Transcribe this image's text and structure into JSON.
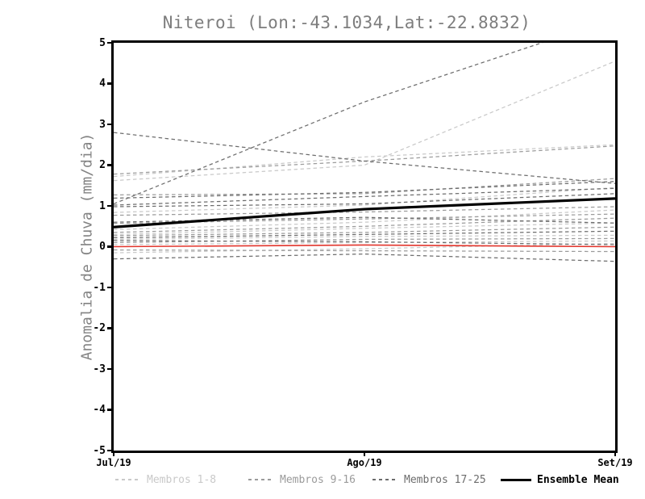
{
  "chart_data": {
    "type": "line",
    "title": "Niteroi (Lon:-43.1034,Lat:-22.8832)",
    "ylabel": "Anomalia de Chuva (mm/dia)",
    "xlabel": "",
    "x_categories": [
      "Jul/19",
      "Ago/19",
      "Set/19"
    ],
    "ylim": [
      -5,
      5
    ],
    "y_ticks": [
      5,
      4,
      3,
      2,
      1,
      0,
      -1,
      -2,
      -3,
      -4,
      -5
    ],
    "grid": false,
    "legend_position": "bottom",
    "groups": [
      {
        "name": "Membros 1-8",
        "color": "#c9c9c9",
        "dash": true,
        "width": 1.25
      },
      {
        "name": "Membros 9-16",
        "color": "#9b9b9b",
        "dash": true,
        "width": 1.25
      },
      {
        "name": "Membros 17-25",
        "color": "#6d6d6d",
        "dash": true,
        "width": 1.25
      },
      {
        "name": "Ensemble Mean",
        "color": "#000000",
        "dash": false,
        "width": 3.2
      }
    ],
    "series": [
      {
        "name": "member-1",
        "group": 0,
        "values": [
          1.62,
          2.0,
          4.55
        ]
      },
      {
        "name": "member-2",
        "group": 0,
        "values": [
          1.72,
          2.2,
          2.5
        ]
      },
      {
        "name": "member-3",
        "group": 0,
        "values": [
          0.84,
          1.02,
          1.45
        ]
      },
      {
        "name": "member-4",
        "group": 0,
        "values": [
          0.42,
          0.6,
          0.9
        ]
      },
      {
        "name": "member-5",
        "group": 0,
        "values": [
          0.3,
          0.45,
          0.58
        ]
      },
      {
        "name": "member-6",
        "group": 0,
        "values": [
          0.18,
          0.25,
          0.28
        ]
      },
      {
        "name": "member-7",
        "group": 0,
        "values": [
          0.05,
          0.1,
          0.14
        ]
      },
      {
        "name": "member-8",
        "group": 0,
        "values": [
          -0.15,
          -0.05,
          0.08
        ]
      },
      {
        "name": "member-9",
        "group": 1,
        "values": [
          1.78,
          2.1,
          2.47
        ]
      },
      {
        "name": "member-10",
        "group": 1,
        "values": [
          1.27,
          1.3,
          1.67
        ]
      },
      {
        "name": "member-11",
        "group": 1,
        "values": [
          0.77,
          0.85,
          0.98
        ]
      },
      {
        "name": "member-12",
        "group": 1,
        "values": [
          0.57,
          0.68,
          0.8
        ]
      },
      {
        "name": "member-13",
        "group": 1,
        "values": [
          0.35,
          0.5,
          0.7
        ]
      },
      {
        "name": "member-14",
        "group": 1,
        "values": [
          0.27,
          0.35,
          0.48
        ]
      },
      {
        "name": "member-15",
        "group": 1,
        "values": [
          0.1,
          0.18,
          0.2
        ]
      },
      {
        "name": "member-16",
        "group": 1,
        "values": [
          -0.08,
          -0.1,
          -0.12
        ]
      },
      {
        "name": "member-17",
        "group": 2,
        "values": [
          2.8,
          2.1,
          1.55
        ]
      },
      {
        "name": "member-18",
        "group": 2,
        "values": [
          1.05,
          3.55,
          5.6
        ]
      },
      {
        "name": "member-19",
        "group": 2,
        "values": [
          1.19,
          1.33,
          1.6
        ]
      },
      {
        "name": "member-20",
        "group": 2,
        "values": [
          1.02,
          1.23,
          1.43
        ]
      },
      {
        "name": "member-21",
        "group": 2,
        "values": [
          0.98,
          1.05,
          1.3
        ]
      },
      {
        "name": "member-22",
        "group": 2,
        "values": [
          0.6,
          0.72,
          0.58
        ]
      },
      {
        "name": "member-23",
        "group": 2,
        "values": [
          0.22,
          0.3,
          0.38
        ]
      },
      {
        "name": "member-24",
        "group": 2,
        "values": [
          0.15,
          0.12,
          0.05
        ]
      },
      {
        "name": "member-25",
        "group": 2,
        "values": [
          -0.3,
          -0.18,
          -0.36
        ]
      },
      {
        "name": "red-line",
        "color": "#e2352c",
        "width": 1.6,
        "dash": false,
        "values": [
          0.0,
          0.04,
          0.0
        ]
      },
      {
        "name": "ensemble-mean-line",
        "color": "#000000",
        "width": 3.2,
        "dash": false,
        "values": [
          0.48,
          0.92,
          1.18
        ]
      }
    ]
  },
  "legend": {
    "items": [
      {
        "label": "Membros 1-8",
        "color": "#c9c9c9",
        "sample": "dashed"
      },
      {
        "label": "Membros 9-16",
        "color": "#9b9b9b",
        "sample": "dashed"
      },
      {
        "label": "Membros 17-25",
        "color": "#6d6d6d",
        "sample": "dashed"
      },
      {
        "label": "Ensemble Mean",
        "color": "#000000",
        "sample": "solid"
      }
    ]
  }
}
